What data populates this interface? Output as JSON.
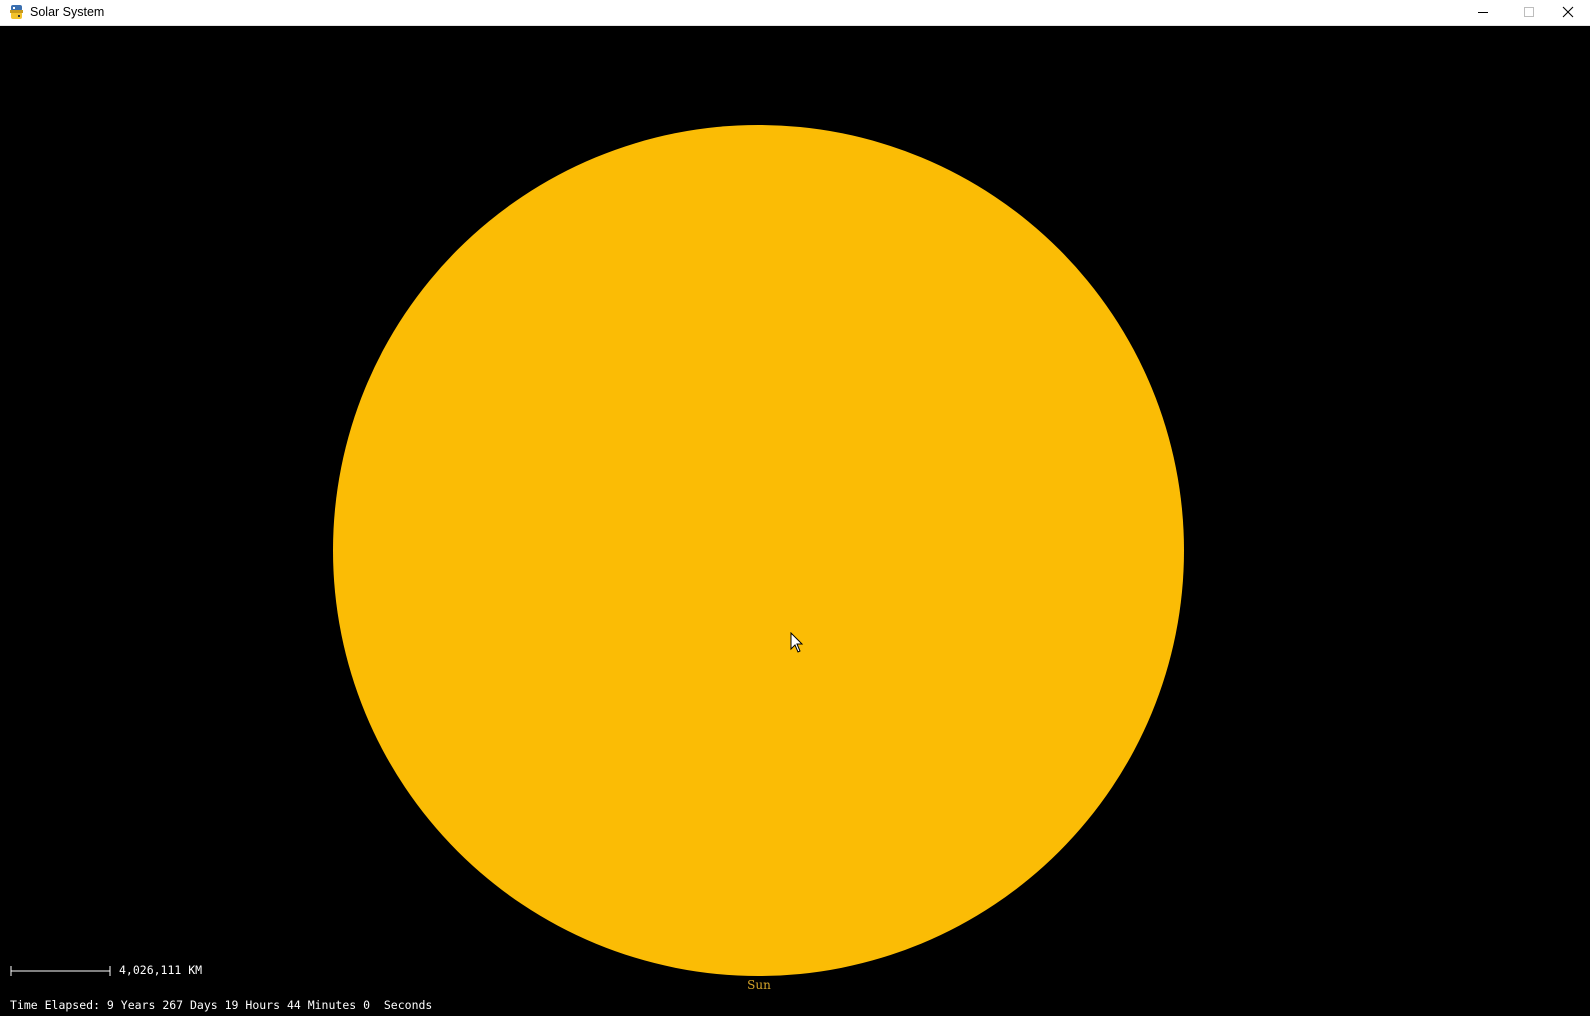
{
  "window": {
    "title": "Solar System",
    "icon": "python-icon",
    "controls": {
      "minimize": "minimize-icon",
      "maximize": "maximize-icon",
      "close": "close-icon"
    }
  },
  "scene": {
    "background_color": "#000000",
    "body": {
      "name": "Sun",
      "color": "#fbbc05",
      "label_color": "#d7a52a"
    },
    "scale": {
      "label": "4,026,111 KM"
    },
    "status": {
      "time_elapsed": "Time Elapsed: 9 Years 267 Days 19 Hours 44 Minutes 0  Seconds"
    }
  },
  "cursor": {
    "icon": "arrow-cursor-icon"
  }
}
